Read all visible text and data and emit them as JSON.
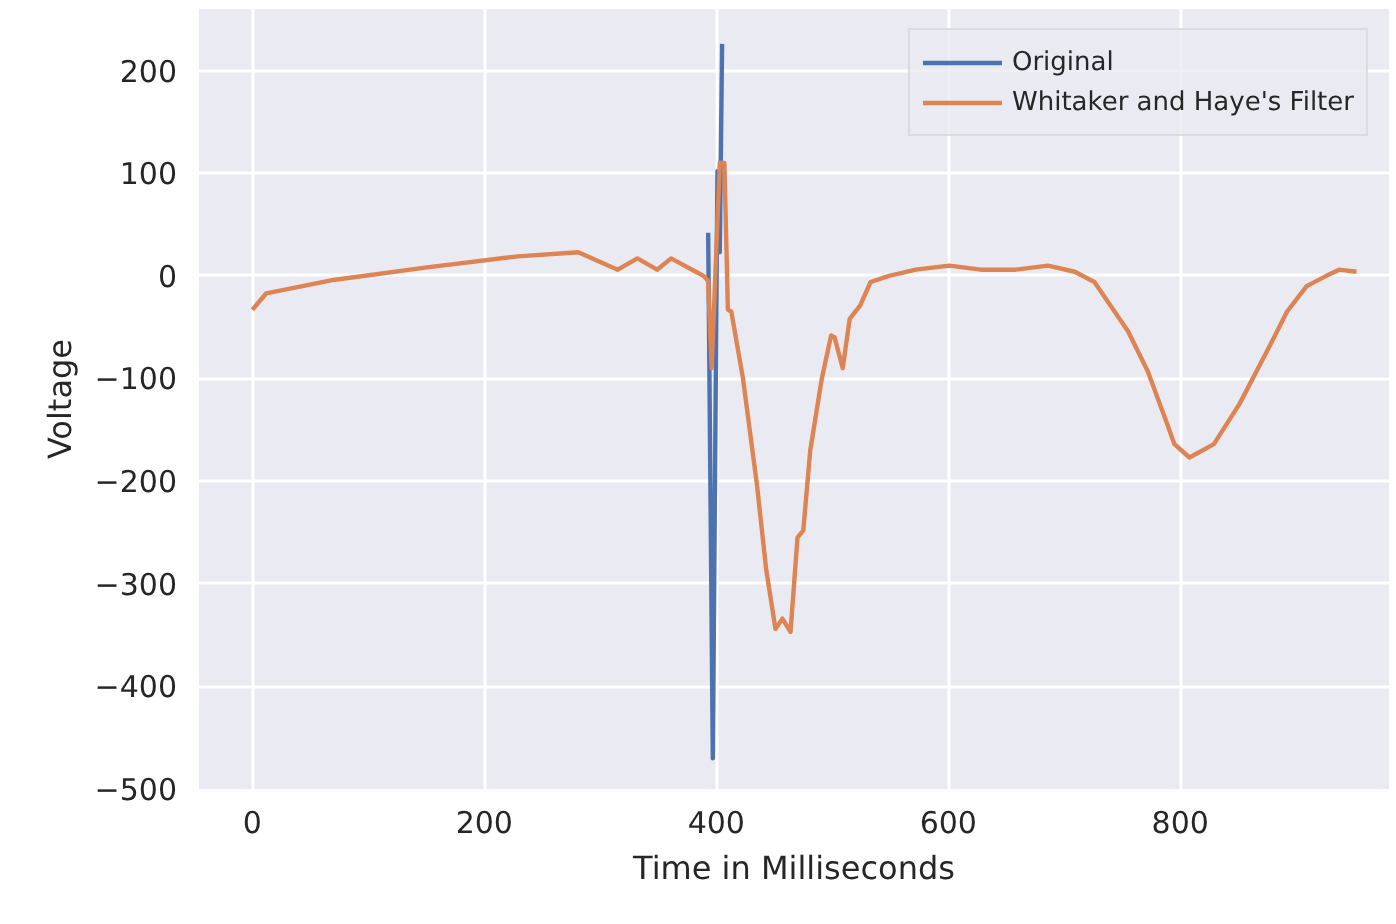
{
  "chart_data": {
    "type": "line",
    "xlabel": "Time in Milliseconds",
    "ylabel": "Voltage",
    "xlim": [
      -46,
      980
    ],
    "ylim": [
      -500,
      260
    ],
    "xticks": [
      0,
      200,
      400,
      600,
      800
    ],
    "yticks": [
      -500,
      -400,
      -300,
      -200,
      -100,
      0,
      100,
      200
    ],
    "grid": true,
    "legend": "top right",
    "series": [
      {
        "name": "Original",
        "color": "#4c72b0",
        "x": [
          393,
          397,
          401,
          403,
          405
        ],
        "values": [
          42,
          -470,
          102,
          23,
          226
        ]
      },
      {
        "name": "Whitaker and Haye's Filter",
        "color": "#dd8452",
        "x": [
          0,
          12,
          70,
          149,
          229,
          281,
          315,
          332,
          349,
          361,
          384,
          389,
          393,
          396,
          403,
          407,
          410,
          413,
          423,
          435,
          443,
          451,
          457,
          464,
          470,
          475,
          481,
          491,
          499,
          502,
          509,
          515,
          524,
          533,
          549,
          572,
          601,
          628,
          658,
          686,
          709,
          726,
          755,
          772,
          789,
          795,
          808,
          829,
          851,
          875,
          892,
          909,
          926,
          937,
          952
        ],
        "values": [
          -33,
          -17,
          -4,
          8,
          19,
          23,
          6,
          17,
          6,
          17,
          3,
          0,
          -5,
          -90,
          110,
          110,
          -33,
          -35,
          -100,
          -203,
          -286,
          -344,
          -334,
          -347,
          -255,
          -248,
          -170,
          -100,
          -58,
          -60,
          -90,
          -42,
          -29,
          -6,
          0,
          6,
          10,
          6,
          6,
          10,
          4,
          -6,
          -54,
          -93,
          -145,
          -164,
          -177,
          -164,
          -125,
          -73,
          -35,
          -10,
          0,
          6,
          4
        ]
      }
    ]
  }
}
